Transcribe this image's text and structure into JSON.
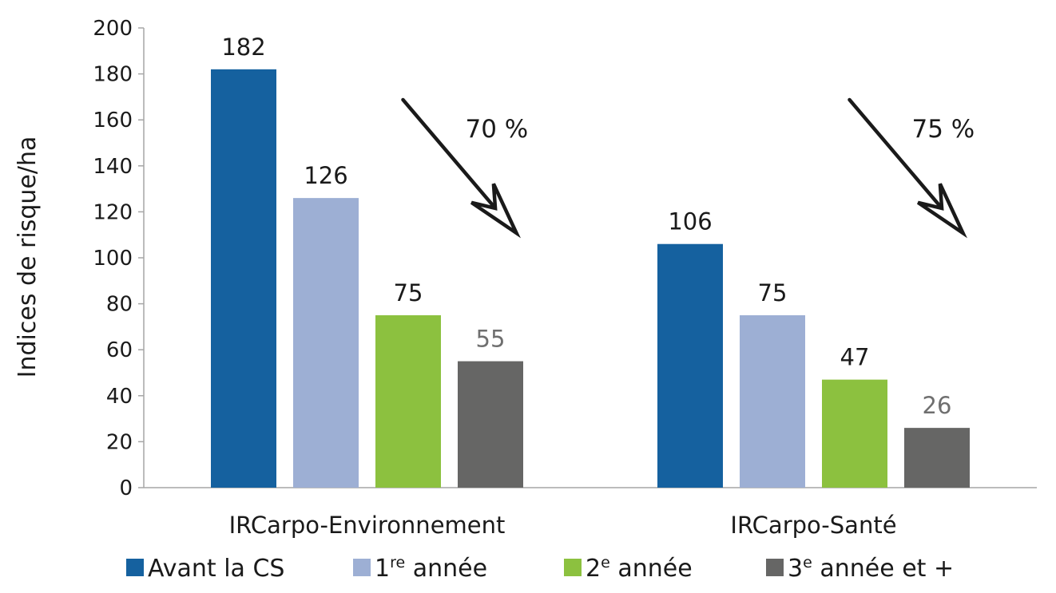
{
  "chart_data": {
    "type": "bar",
    "title": "",
    "xlabel": "",
    "ylabel": "Indices de risque/ha",
    "ylim": [
      0,
      200
    ],
    "yticks": [
      0,
      20,
      40,
      60,
      80,
      100,
      120,
      140,
      160,
      180,
      200
    ],
    "grid": false,
    "legend_position": "bottom",
    "categories": [
      "IRCarpo-Environnement",
      "IRCarpo-Santé"
    ],
    "series": [
      {
        "name": "Avant la CS",
        "legend_base": "",
        "legend_sup": "",
        "legend_rest": "Avant la CS",
        "color": "#15619f",
        "label_color": "#1a1a1a",
        "values": [
          182,
          106
        ]
      },
      {
        "name": "1re année",
        "legend_base": "1",
        "legend_sup": "re",
        "legend_rest": " année",
        "color": "#9dafd4",
        "label_color": "#1a1a1a",
        "values": [
          126,
          75
        ]
      },
      {
        "name": "2e année",
        "legend_base": "2",
        "legend_sup": "e",
        "legend_rest": " année",
        "color": "#8cc13f",
        "label_color": "#1a1a1a",
        "values": [
          75,
          47
        ]
      },
      {
        "name": "3e année et +",
        "legend_base": "3",
        "legend_sup": "e",
        "legend_rest": " année et +",
        "color": "#666665",
        "label_color": "#6f6f6f",
        "values": [
          55,
          26
        ]
      }
    ],
    "annotations": [
      {
        "text": "70 %",
        "category": "IRCarpo-Environnement",
        "arrow": "down-right"
      },
      {
        "text": "75 %",
        "category": "IRCarpo-Santé",
        "arrow": "down-right"
      }
    ]
  }
}
